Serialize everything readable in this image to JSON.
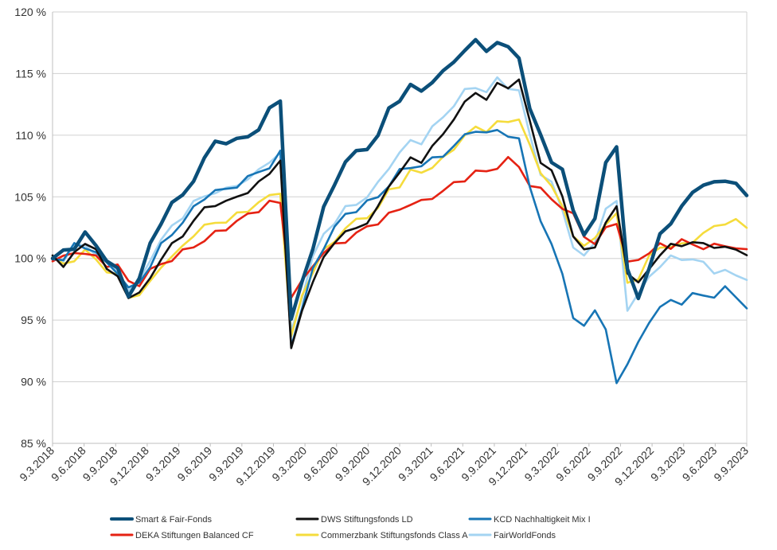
{
  "chart_data": {
    "type": "line",
    "title": "",
    "xlabel": "",
    "ylabel": "",
    "ylim": [
      85,
      120
    ],
    "y_ticks": [
      "120 %",
      "115 %",
      "110 %",
      "105 %",
      "100 %",
      "95 %",
      "90 %",
      "85 %"
    ],
    "y_tick_values": [
      120,
      115,
      110,
      105,
      100,
      95,
      90,
      85
    ],
    "x_ticks": [
      "9.3.2018",
      "9.6.2018",
      "9.9.2018",
      "9.12.2018",
      "9.3.2019",
      "9.6.2019",
      "9.9.2019",
      "9.12.2019",
      "9.3.2020",
      "9.6.2020",
      "9.9.2020",
      "9.12.2020",
      "9.3.2021",
      "9.6.2021",
      "9.9.2021",
      "9.12.2021",
      "9.3.2022",
      "9.6.2022",
      "9.9.2022",
      "9.12.2022",
      "9.3.2023",
      "9.6.2023",
      "9.9.2023"
    ],
    "grid": "horizontal",
    "legend_position": "bottom",
    "x": [
      "2018-03",
      "2018-05",
      "2018-06",
      "2018-08",
      "2018-09",
      "2018-10",
      "2018-11",
      "2018-12",
      "2019-01",
      "2019-02",
      "2019-03",
      "2019-04",
      "2019-05",
      "2019-06",
      "2019-07",
      "2019-08",
      "2019-09",
      "2019-10",
      "2019-11",
      "2019-12",
      "2020-01",
      "2020-02",
      "2020-03",
      "2020-04",
      "2020-05",
      "2020-06",
      "2020-07",
      "2020-08",
      "2020-09",
      "2020-10",
      "2020-11",
      "2020-12",
      "2021-01",
      "2021-02",
      "2021-03",
      "2021-04",
      "2021-05",
      "2021-06",
      "2021-07",
      "2021-08",
      "2021-09",
      "2021-10",
      "2021-11",
      "2021-12",
      "2022-01",
      "2022-02",
      "2022-03",
      "2022-04",
      "2022-05",
      "2022-06",
      "2022-07",
      "2022-08",
      "2022-09",
      "2022-10",
      "2022-11",
      "2022-12",
      "2023-01",
      "2023-02",
      "2023-03",
      "2023-04",
      "2023-05",
      "2023-06",
      "2023-07",
      "2023-08",
      "2023-09"
    ],
    "series": [
      {
        "name": "Smart & Fair-Fonds",
        "color": "#0b4f79",
        "width": 4.5,
        "values": [
          100,
          100.5,
          101,
          102,
          101,
          100,
          99,
          97,
          98.5,
          101,
          103,
          104.5,
          105,
          106.5,
          108,
          109.5,
          109.5,
          109.5,
          110,
          110.5,
          112,
          113,
          95,
          98,
          101,
          104,
          106,
          108,
          108.5,
          109,
          110,
          112,
          113,
          114,
          113.5,
          114.5,
          115,
          116,
          117,
          117.5,
          117,
          117.5,
          117,
          116.5,
          112,
          110,
          108,
          107,
          104,
          102,
          103,
          108,
          109,
          99,
          97,
          99,
          102,
          103,
          104,
          105.5,
          106,
          106,
          106.5,
          106,
          105
        ]
      },
      {
        "name": "DWS Stiftungsfonds LD",
        "color": "#111111",
        "width": 2.6,
        "values": [
          100,
          99.5,
          100.5,
          101,
          101,
          99,
          98.5,
          97,
          97,
          98.5,
          100,
          101,
          102,
          103,
          104,
          104.5,
          104.5,
          105,
          105.5,
          106,
          107,
          108,
          92.5,
          96,
          98,
          100,
          101.5,
          102,
          102.5,
          103,
          104,
          106,
          107,
          108,
          108,
          109,
          110,
          111.5,
          112.5,
          113.5,
          113,
          114,
          114,
          114.5,
          111,
          108,
          107,
          105,
          102,
          100.5,
          101,
          103,
          104,
          99,
          98,
          99,
          100.5,
          101,
          101,
          101.5,
          101,
          101,
          101,
          100.5,
          100.5
        ]
      },
      {
        "name": "KCD Nachhaltigkeit Mix I",
        "color": "#1775b5",
        "width": 2.6,
        "values": [
          100,
          100,
          101,
          101,
          100.5,
          99.5,
          99,
          97.5,
          98,
          99.5,
          101,
          102,
          103,
          104,
          105,
          105.5,
          105.5,
          106,
          106.5,
          107,
          107.5,
          108.5,
          93,
          96,
          99,
          101,
          102.5,
          103.5,
          104,
          104.5,
          105,
          106,
          107,
          107.5,
          107.5,
          108,
          108.5,
          109,
          110,
          110.5,
          110,
          110.5,
          110,
          109.5,
          106,
          103,
          101,
          99,
          95,
          94.5,
          96,
          94,
          90,
          91.5,
          93,
          95,
          96,
          96.5,
          96.5,
          97,
          97,
          97,
          97.5,
          97,
          96
        ]
      },
      {
        "name": "DEKA Stiftungen Balanced CF",
        "color": "#e52213",
        "width": 2.6,
        "values": [
          100,
          100,
          100.5,
          100.5,
          100,
          99.5,
          99.5,
          98,
          98,
          99,
          99.5,
          100,
          100.5,
          101,
          101.5,
          102,
          102.5,
          103,
          103.5,
          104,
          104.5,
          104.5,
          97,
          98,
          99.5,
          100.5,
          101,
          101.5,
          102,
          102.5,
          103,
          103.5,
          104,
          104.5,
          104.5,
          105,
          105.5,
          106,
          106.5,
          107,
          107,
          107.5,
          108,
          107.5,
          106,
          105.5,
          105,
          104,
          103.5,
          102,
          101,
          102.5,
          103,
          99.5,
          100,
          100.5,
          101,
          101,
          101.5,
          101,
          101,
          101,
          101,
          101,
          100.5
        ]
      },
      {
        "name": "Commerzbank Stiftungsfonds Class A",
        "color": "#f5dc3c",
        "width": 2.6,
        "values": [
          100,
          99.5,
          100,
          100.5,
          100,
          99,
          98.5,
          97,
          97,
          98,
          99.5,
          100,
          101,
          102,
          102.5,
          103,
          103,
          103.5,
          104,
          104.5,
          105,
          105.5,
          93.5,
          97,
          99,
          100.5,
          101.5,
          102.5,
          103,
          103.5,
          104,
          105.5,
          106,
          107,
          107,
          107.5,
          108,
          109,
          110,
          110.5,
          110.5,
          111,
          111,
          111.5,
          109,
          107,
          106,
          104,
          102,
          101,
          101.5,
          103,
          103.5,
          98,
          98.5,
          100,
          101,
          101,
          101,
          101.5,
          102,
          102.5,
          103,
          103,
          102.5
        ]
      },
      {
        "name": "FairWorldFonds",
        "color": "#a4d4f2",
        "width": 2.6,
        "values": [
          100,
          100,
          101,
          101,
          100.5,
          99.5,
          99,
          97.5,
          98,
          100,
          101.5,
          102.5,
          103.5,
          104.5,
          105,
          105.5,
          105.5,
          106,
          106.5,
          107,
          108,
          108.5,
          94,
          97,
          100,
          102,
          103,
          104,
          104.5,
          105,
          106,
          107.5,
          108.5,
          109.5,
          109.5,
          110.5,
          111.5,
          112.5,
          113.5,
          114,
          113.5,
          114.5,
          114,
          113.5,
          110,
          107,
          106,
          104,
          101,
          100,
          101.5,
          104,
          104.5,
          96,
          97,
          98.5,
          99.5,
          100,
          100,
          100,
          99.5,
          99,
          99,
          98.5,
          98.5
        ]
      }
    ]
  }
}
